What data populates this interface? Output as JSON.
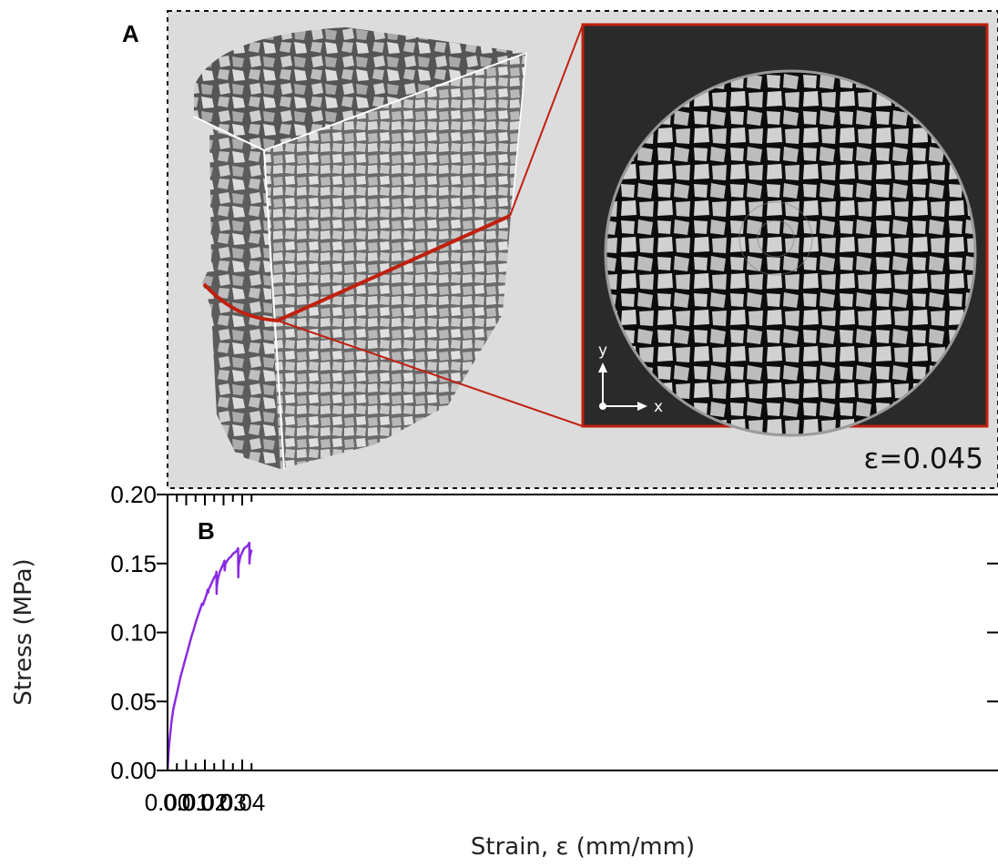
{
  "panel_a": {
    "label": "A",
    "strain_annotation": "ε=0.045",
    "axis_y_label": "y",
    "axis_x_label": "x",
    "colors": {
      "background": "#dcdcdc",
      "section_line": "#c0200f",
      "ct_background": "#2a2a2a"
    }
  },
  "panel_b": {
    "label": "B"
  },
  "chart_data": {
    "type": "line",
    "title": "",
    "xlabel": "Strain, ε (mm/mm)",
    "ylabel": "Stress (MPa)",
    "xlim": [
      0,
      0.045
    ],
    "ylim": [
      0,
      0.2
    ],
    "x_ticks": [
      0.0,
      0.01,
      0.02,
      0.03,
      0.04
    ],
    "x_tick_labels": [
      "0.00",
      "0.01",
      "0.02",
      "0.03",
      "0.04"
    ],
    "y_ticks": [
      0.0,
      0.05,
      0.1,
      0.15,
      0.2
    ],
    "y_tick_labels": [
      "0.00",
      "0.05",
      "0.10",
      "0.15",
      "0.20"
    ],
    "grid": false,
    "series": [
      {
        "color": "#8a2be2",
        "x": [
          0.0,
          0.0005,
          0.001,
          0.002,
          0.003,
          0.004,
          0.005,
          0.006,
          0.007,
          0.008,
          0.009,
          0.01,
          0.011,
          0.012,
          0.013,
          0.014,
          0.015,
          0.016,
          0.017,
          0.018,
          0.0185,
          0.019,
          0.02,
          0.021,
          0.0215,
          0.0218,
          0.022,
          0.023,
          0.024,
          0.025,
          0.026,
          0.0262,
          0.0263,
          0.0264,
          0.027,
          0.028,
          0.029,
          0.03,
          0.0305,
          0.0306,
          0.031,
          0.032,
          0.033,
          0.034,
          0.035,
          0.036,
          0.037,
          0.0378,
          0.0379,
          0.038,
          0.039,
          0.04,
          0.041,
          0.042,
          0.043,
          0.0438,
          0.0439,
          0.0441,
          0.045
        ],
        "y": [
          0.0,
          0.012,
          0.021,
          0.034,
          0.044,
          0.05,
          0.056,
          0.062,
          0.068,
          0.073,
          0.078,
          0.083,
          0.088,
          0.093,
          0.098,
          0.102,
          0.107,
          0.111,
          0.115,
          0.119,
          0.121,
          0.12,
          0.124,
          0.128,
          0.131,
          0.129,
          0.131,
          0.134,
          0.137,
          0.14,
          0.142,
          0.144,
          0.128,
          0.133,
          0.139,
          0.144,
          0.147,
          0.15,
          0.152,
          0.145,
          0.15,
          0.152,
          0.154,
          0.155,
          0.157,
          0.158,
          0.159,
          0.161,
          0.14,
          0.148,
          0.155,
          0.158,
          0.161,
          0.162,
          0.163,
          0.165,
          0.15,
          0.155,
          0.16
        ]
      }
    ]
  }
}
